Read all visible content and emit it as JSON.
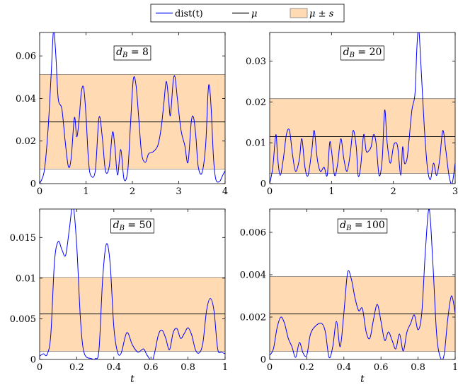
{
  "legend": {
    "entries": [
      {
        "label": "dist(t)",
        "kind": "line",
        "color": "#0000ff"
      },
      {
        "label": "μ",
        "kind": "line",
        "color": "#000000"
      },
      {
        "label": "μ ± s",
        "kind": "band",
        "color": "#ffdab3"
      }
    ]
  },
  "colors": {
    "curve": "#0000ff",
    "mean": "#000000",
    "band_fill": "#ffdab3",
    "band_edge": "#808080"
  },
  "chart_data": [
    {
      "type": "line",
      "panel_label": "d_B = 8",
      "label_base": "d",
      "label_sub": "B",
      "label_rest": " = 8",
      "xlabel": "",
      "xlim": [
        0,
        4
      ],
      "ylim": [
        0,
        0.071
      ],
      "xticks": [
        {
          "v": 0,
          "label": "0"
        },
        {
          "v": 1,
          "label": "1"
        },
        {
          "v": 2,
          "label": "2"
        },
        {
          "v": 3,
          "label": "3"
        },
        {
          "v": 4,
          "label": "4"
        }
      ],
      "yticks": [
        {
          "v": 0,
          "label": "0"
        },
        {
          "v": 0.02,
          "label": "0.02"
        },
        {
          "v": 0.04,
          "label": "0.04"
        },
        {
          "v": 0.06,
          "label": "0.06"
        }
      ],
      "mean": 0.029,
      "band": [
        0.0068,
        0.0513
      ],
      "points": [
        [
          0,
          0.0
        ],
        [
          0.1,
          0.006
        ],
        [
          0.18,
          0.025
        ],
        [
          0.25,
          0.052
        ],
        [
          0.3,
          0.072
        ],
        [
          0.35,
          0.06
        ],
        [
          0.4,
          0.04
        ],
        [
          0.48,
          0.035
        ],
        [
          0.55,
          0.02
        ],
        [
          0.62,
          0.008
        ],
        [
          0.68,
          0.012
        ],
        [
          0.75,
          0.031
        ],
        [
          0.8,
          0.022
        ],
        [
          0.85,
          0.03
        ],
        [
          0.9,
          0.043
        ],
        [
          0.95,
          0.045
        ],
        [
          1.0,
          0.032
        ],
        [
          1.05,
          0.012
        ],
        [
          1.1,
          0.004
        ],
        [
          1.2,
          0.006
        ],
        [
          1.28,
          0.031
        ],
        [
          1.35,
          0.022
        ],
        [
          1.42,
          0.006
        ],
        [
          1.5,
          0.008
        ],
        [
          1.57,
          0.024
        ],
        [
          1.62,
          0.018
        ],
        [
          1.68,
          0.004
        ],
        [
          1.75,
          0.016
        ],
        [
          1.82,
          0.002
        ],
        [
          1.9,
          0.006
        ],
        [
          1.96,
          0.028
        ],
        [
          2.02,
          0.049
        ],
        [
          2.08,
          0.046
        ],
        [
          2.14,
          0.03
        ],
        [
          2.2,
          0.014
        ],
        [
          2.28,
          0.01
        ],
        [
          2.35,
          0.014
        ],
        [
          2.45,
          0.015
        ],
        [
          2.55,
          0.018
        ],
        [
          2.62,
          0.026
        ],
        [
          2.68,
          0.038
        ],
        [
          2.73,
          0.048
        ],
        [
          2.78,
          0.04
        ],
        [
          2.82,
          0.032
        ],
        [
          2.88,
          0.048
        ],
        [
          2.92,
          0.05
        ],
        [
          2.97,
          0.04
        ],
        [
          3.05,
          0.025
        ],
        [
          3.13,
          0.018
        ],
        [
          3.2,
          0.01
        ],
        [
          3.27,
          0.029
        ],
        [
          3.32,
          0.031
        ],
        [
          3.37,
          0.022
        ],
        [
          3.42,
          0.008
        ],
        [
          3.5,
          0.005
        ],
        [
          3.58,
          0.018
        ],
        [
          3.63,
          0.042
        ],
        [
          3.66,
          0.046
        ],
        [
          3.7,
          0.035
        ],
        [
          3.75,
          0.012
        ],
        [
          3.8,
          0.002
        ],
        [
          3.88,
          0.001
        ],
        [
          3.95,
          0.004
        ],
        [
          4.0,
          0.006
        ]
      ]
    },
    {
      "type": "line",
      "panel_label": "d_B = 20",
      "label_base": "d",
      "label_sub": "B",
      "label_rest": " = 20",
      "xlabel": "",
      "xlim": [
        0,
        3
      ],
      "ylim": [
        0,
        0.037
      ],
      "xticks": [
        {
          "v": 0,
          "label": "0"
        },
        {
          "v": 1,
          "label": "1"
        },
        {
          "v": 2,
          "label": "2"
        },
        {
          "v": 3,
          "label": "3"
        }
      ],
      "yticks": [
        {
          "v": 0,
          "label": "0"
        },
        {
          "v": 0.01,
          "label": "0.01"
        },
        {
          "v": 0.02,
          "label": "0.02"
        },
        {
          "v": 0.03,
          "label": "0.03"
        }
      ],
      "mean": 0.0115,
      "band": [
        0.0025,
        0.0208
      ],
      "points": [
        [
          0,
          0.0
        ],
        [
          0.05,
          0.004
        ],
        [
          0.1,
          0.012
        ],
        [
          0.13,
          0.006
        ],
        [
          0.17,
          0.002
        ],
        [
          0.22,
          0.006
        ],
        [
          0.27,
          0.012
        ],
        [
          0.32,
          0.013
        ],
        [
          0.37,
          0.007
        ],
        [
          0.42,
          0.003
        ],
        [
          0.48,
          0.006
        ],
        [
          0.52,
          0.011
        ],
        [
          0.57,
          0.004
        ],
        [
          0.62,
          0.002
        ],
        [
          0.68,
          0.008
        ],
        [
          0.72,
          0.013
        ],
        [
          0.77,
          0.006
        ],
        [
          0.82,
          0.003
        ],
        [
          0.88,
          0.004
        ],
        [
          0.93,
          0.002
        ],
        [
          0.97,
          0.01
        ],
        [
          1.0,
          0.008
        ],
        [
          1.05,
          0.002
        ],
        [
          1.1,
          0.005
        ],
        [
          1.15,
          0.011
        ],
        [
          1.2,
          0.006
        ],
        [
          1.25,
          0.003
        ],
        [
          1.3,
          0.007
        ],
        [
          1.35,
          0.013
        ],
        [
          1.4,
          0.009
        ],
        [
          1.43,
          0.002
        ],
        [
          1.47,
          0.004
        ],
        [
          1.52,
          0.012
        ],
        [
          1.56,
          0.008
        ],
        [
          1.6,
          0.008
        ],
        [
          1.64,
          0.009
        ],
        [
          1.68,
          0.012
        ],
        [
          1.72,
          0.01
        ],
        [
          1.77,
          0.002
        ],
        [
          1.82,
          0.006
        ],
        [
          1.86,
          0.018
        ],
        [
          1.9,
          0.01
        ],
        [
          1.95,
          0.005
        ],
        [
          2.0,
          0.009
        ],
        [
          2.03,
          0.01
        ],
        [
          2.07,
          0.009
        ],
        [
          2.12,
          0.002
        ],
        [
          2.15,
          0.009
        ],
        [
          2.18,
          0.005
        ],
        [
          2.22,
          0.006
        ],
        [
          2.25,
          0.01
        ],
        [
          2.3,
          0.018
        ],
        [
          2.35,
          0.022
        ],
        [
          2.38,
          0.033
        ],
        [
          2.41,
          0.038
        ],
        [
          2.45,
          0.028
        ],
        [
          2.5,
          0.014
        ],
        [
          2.55,
          0.004
        ],
        [
          2.6,
          0.001
        ],
        [
          2.65,
          0.005
        ],
        [
          2.7,
          0.002
        ],
        [
          2.75,
          0.006
        ],
        [
          2.8,
          0.013
        ],
        [
          2.85,
          0.008
        ],
        [
          2.9,
          0.002
        ],
        [
          2.95,
          0.0
        ],
        [
          3.0,
          0.005
        ]
      ]
    },
    {
      "type": "line",
      "panel_label": "d_B = 50",
      "label_base": "d",
      "label_sub": "B",
      "label_rest": " = 50",
      "xlabel": "t",
      "xlim": [
        0,
        1
      ],
      "ylim": [
        0,
        0.0185
      ],
      "xticks": [
        {
          "v": 0,
          "label": "0"
        },
        {
          "v": 0.2,
          "label": "0.2"
        },
        {
          "v": 0.4,
          "label": "0.4"
        },
        {
          "v": 0.6,
          "label": "0.6"
        },
        {
          "v": 0.8,
          "label": "0.8"
        },
        {
          "v": 1,
          "label": "1"
        }
      ],
      "yticks": [
        {
          "v": 0,
          "label": "0"
        },
        {
          "v": 0.005,
          "label": "0.005"
        },
        {
          "v": 0.01,
          "label": "0.01"
        },
        {
          "v": 0.015,
          "label": "0.015"
        }
      ],
      "mean": 0.0056,
      "band": [
        0.001,
        0.0101
      ],
      "points": [
        [
          0,
          0.0004
        ],
        [
          0.02,
          0.0007
        ],
        [
          0.04,
          0.0006
        ],
        [
          0.06,
          0.003
        ],
        [
          0.08,
          0.012
        ],
        [
          0.1,
          0.0145
        ],
        [
          0.12,
          0.0135
        ],
        [
          0.14,
          0.0128
        ],
        [
          0.16,
          0.016
        ],
        [
          0.18,
          0.019
        ],
        [
          0.2,
          0.014
        ],
        [
          0.22,
          0.005
        ],
        [
          0.24,
          0.0008
        ],
        [
          0.28,
          0.0001
        ],
        [
          0.3,
          0.0001
        ],
        [
          0.32,
          0.0012
        ],
        [
          0.34,
          0.01
        ],
        [
          0.36,
          0.0142
        ],
        [
          0.38,
          0.0118
        ],
        [
          0.4,
          0.004
        ],
        [
          0.42,
          0.0009
        ],
        [
          0.44,
          0.0008
        ],
        [
          0.47,
          0.0033
        ],
        [
          0.5,
          0.0018
        ],
        [
          0.53,
          0.0009
        ],
        [
          0.56,
          0.0013
        ],
        [
          0.58,
          0.0005
        ],
        [
          0.61,
          0.0
        ],
        [
          0.64,
          0.003
        ],
        [
          0.66,
          0.0036
        ],
        [
          0.68,
          0.0026
        ],
        [
          0.7,
          0.0012
        ],
        [
          0.72,
          0.0033
        ],
        [
          0.74,
          0.0038
        ],
        [
          0.76,
          0.0026
        ],
        [
          0.78,
          0.0032
        ],
        [
          0.8,
          0.0039
        ],
        [
          0.82,
          0.003
        ],
        [
          0.84,
          0.0012
        ],
        [
          0.86,
          0.0008
        ],
        [
          0.88,
          0.002
        ],
        [
          0.9,
          0.006
        ],
        [
          0.92,
          0.0075
        ],
        [
          0.94,
          0.006
        ],
        [
          0.96,
          0.0013
        ],
        [
          0.98,
          0.0009
        ],
        [
          1.0,
          0.0007
        ]
      ]
    },
    {
      "type": "line",
      "panel_label": "d_B = 100",
      "label_base": "d",
      "label_sub": "B",
      "label_rest": " = 100",
      "xlabel": "t",
      "xlim": [
        0,
        1
      ],
      "ylim": [
        0,
        0.0071
      ],
      "xticks": [
        {
          "v": 0,
          "label": "0"
        },
        {
          "v": 0.2,
          "label": "0.2"
        },
        {
          "v": 0.4,
          "label": "0.4"
        },
        {
          "v": 0.6,
          "label": "0.6"
        },
        {
          "v": 0.8,
          "label": "0.8"
        },
        {
          "v": 1,
          "label": "1"
        }
      ],
      "yticks": [
        {
          "v": 0,
          "label": "0"
        },
        {
          "v": 0.002,
          "label": "0.002"
        },
        {
          "v": 0.004,
          "label": "0.004"
        },
        {
          "v": 0.006,
          "label": "0.006"
        }
      ],
      "mean": 0.00215,
      "band": [
        0.00038,
        0.00392
      ],
      "points": [
        [
          0,
          0.0002
        ],
        [
          0.02,
          0.0005
        ],
        [
          0.04,
          0.0015
        ],
        [
          0.06,
          0.002
        ],
        [
          0.08,
          0.0017
        ],
        [
          0.1,
          0.001
        ],
        [
          0.12,
          0.0006
        ],
        [
          0.14,
          0.0001
        ],
        [
          0.16,
          0.0008
        ],
        [
          0.18,
          0.0003
        ],
        [
          0.2,
          0.0002
        ],
        [
          0.22,
          0.0012
        ],
        [
          0.25,
          0.0016
        ],
        [
          0.28,
          0.0017
        ],
        [
          0.3,
          0.0013
        ],
        [
          0.32,
          0.0001
        ],
        [
          0.34,
          0.0006
        ],
        [
          0.36,
          0.0018
        ],
        [
          0.38,
          0.0006
        ],
        [
          0.4,
          0.0022
        ],
        [
          0.42,
          0.0041
        ],
        [
          0.44,
          0.0038
        ],
        [
          0.46,
          0.0029
        ],
        [
          0.48,
          0.0023
        ],
        [
          0.5,
          0.0024
        ],
        [
          0.52,
          0.0013
        ],
        [
          0.54,
          0.001
        ],
        [
          0.56,
          0.0019
        ],
        [
          0.58,
          0.0026
        ],
        [
          0.6,
          0.0018
        ],
        [
          0.62,
          0.0009
        ],
        [
          0.64,
          0.0013
        ],
        [
          0.66,
          0.0009
        ],
        [
          0.68,
          0.0005
        ],
        [
          0.7,
          0.0012
        ],
        [
          0.72,
          0.0004
        ],
        [
          0.74,
          0.0013
        ],
        [
          0.76,
          0.0017
        ],
        [
          0.78,
          0.0021
        ],
        [
          0.8,
          0.0014
        ],
        [
          0.82,
          0.0022
        ],
        [
          0.84,
          0.0052
        ],
        [
          0.86,
          0.0071
        ],
        [
          0.88,
          0.0045
        ],
        [
          0.9,
          0.0012
        ],
        [
          0.92,
          0.0001
        ],
        [
          0.94,
          0.0002
        ],
        [
          0.96,
          0.0019
        ],
        [
          0.98,
          0.003
        ],
        [
          1.0,
          0.0022
        ]
      ]
    }
  ]
}
